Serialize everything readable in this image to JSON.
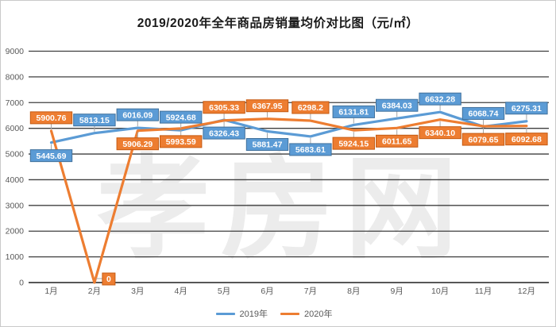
{
  "title": "2019/2020年全年商品房销量均价对比图（元/㎡）",
  "watermark": "孝房网",
  "chart_data": {
    "type": "line",
    "title": "2019/2020年全年商品房销量均价对比图（元/㎡）",
    "unit": "元/㎡",
    "categories": [
      "1月",
      "2月",
      "3月",
      "4月",
      "5月",
      "6月",
      "7月",
      "8月",
      "9月",
      "10月",
      "11月",
      "12月"
    ],
    "ylim": [
      0,
      9000
    ],
    "yticks": [
      0,
      1000,
      2000,
      3000,
      4000,
      5000,
      6000,
      7000,
      8000,
      9000
    ],
    "grid": true,
    "legend_position": "bottom",
    "axis_text_color": "#595959",
    "gridline_color": "#3f3f3f",
    "leader_color": "#a6a6a6",
    "series": [
      {
        "name": "2019年",
        "color": "#5B9BD5",
        "label_border": "#41719C",
        "values": [
          5445.69,
          5813.15,
          6016.09,
          5924.68,
          6326.43,
          5881.47,
          5683.61,
          6131.81,
          6384.03,
          6632.28,
          6068.74,
          6275.31
        ],
        "labels": [
          "5445.69",
          "5813.15",
          "6016.09",
          "5924.68",
          "6326.43",
          "5881.47",
          "5683.61",
          "6131.81",
          "6384.03",
          "6632.28",
          "6068.74",
          "6275.31"
        ],
        "label_side": [
          "below",
          "above",
          "above",
          "above",
          "below",
          "below",
          "below",
          "above",
          "above",
          "above",
          "above",
          "above"
        ]
      },
      {
        "name": "2020年",
        "color": "#ED7D31",
        "label_border": "#C55A11",
        "values": [
          5900.76,
          0,
          5906.29,
          5993.59,
          6305.33,
          6367.95,
          6298.2,
          5924.15,
          6011.65,
          6340.1,
          6079.65,
          6092.68
        ],
        "labels": [
          "5900.76",
          "0",
          "5906.29",
          "5993.59",
          "6305.33",
          "6367.95",
          "6298.2",
          "5924.15",
          "6011.65",
          "6340.10",
          "6079.65",
          "6092.68"
        ],
        "label_side": [
          "above",
          "right",
          "below",
          "below",
          "above",
          "above",
          "above",
          "below",
          "below",
          "below",
          "below",
          "below"
        ]
      }
    ]
  }
}
